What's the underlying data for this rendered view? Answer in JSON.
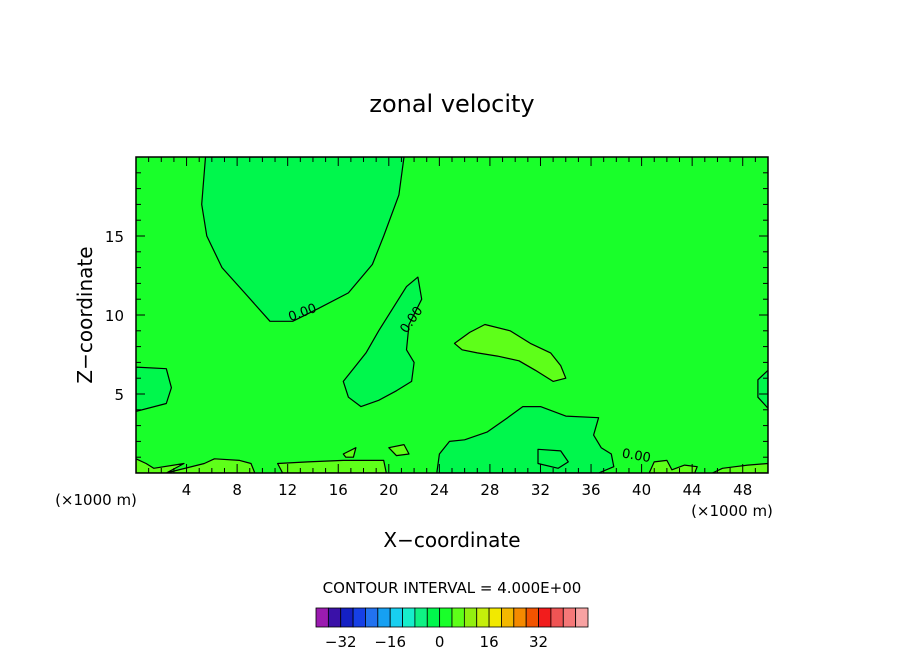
{
  "chart_data": {
    "type": "heatmap",
    "title": "zonal velocity",
    "xlabel": "X−coordinate",
    "ylabel": "Z−coordinate",
    "x_unit_left": "(×1000 m)",
    "x_unit_right": "(×1000 m)",
    "xlim": [
      0,
      50
    ],
    "ylim": [
      0,
      20
    ],
    "x_ticks": [
      4,
      8,
      12,
      16,
      20,
      24,
      28,
      32,
      36,
      40,
      44,
      48
    ],
    "y_ticks": [
      5,
      10,
      15
    ],
    "background_color": "#19ff2a",
    "contour_label": "0.00",
    "contour_interval_label": "CONTOUR INTERVAL = 4.000E+00",
    "regions": [
      {
        "color": "#00f74c",
        "points": [
          [
            5.5,
            20
          ],
          [
            5.2,
            17
          ],
          [
            5.6,
            15
          ],
          [
            6.8,
            13
          ],
          [
            8.6,
            11.4
          ],
          [
            10.6,
            9.6
          ],
          [
            12.4,
            9.6
          ],
          [
            14.4,
            10.4
          ],
          [
            16.8,
            11.4
          ],
          [
            18.7,
            13.2
          ],
          [
            19.6,
            15
          ],
          [
            20.8,
            17.6
          ],
          [
            21.2,
            20
          ]
        ]
      },
      {
        "color": "#00f74c",
        "points": [
          [
            16.4,
            5.8
          ],
          [
            17.2,
            6.6
          ],
          [
            18.2,
            7.6
          ],
          [
            19.2,
            9
          ],
          [
            20.3,
            10.4
          ],
          [
            21.4,
            11.8
          ],
          [
            22.3,
            12.4
          ],
          [
            22.6,
            11
          ],
          [
            21.6,
            9.4
          ],
          [
            21.4,
            7.8
          ],
          [
            22,
            7
          ],
          [
            21.8,
            5.8
          ],
          [
            20.6,
            5.2
          ],
          [
            19.2,
            4.6
          ],
          [
            17.8,
            4.2
          ],
          [
            16.8,
            4.8
          ]
        ]
      },
      {
        "color": "#00f74c",
        "points": [
          [
            23.8,
            0
          ],
          [
            24,
            1.2
          ],
          [
            24.8,
            2
          ],
          [
            26,
            2.1
          ],
          [
            27.8,
            2.6
          ],
          [
            29.4,
            3.5
          ],
          [
            30.6,
            4.2
          ],
          [
            32,
            4.2
          ],
          [
            34,
            3.6
          ],
          [
            36.6,
            3.5
          ],
          [
            36.2,
            2.4
          ],
          [
            36.8,
            1.6
          ],
          [
            37.6,
            1.2
          ],
          [
            37.8,
            0.4
          ],
          [
            36.6,
            0
          ]
        ]
      },
      {
        "color": "#00f74c",
        "points": [
          [
            0,
            6.7
          ],
          [
            2.4,
            6.6
          ],
          [
            2.8,
            5.4
          ],
          [
            2.4,
            4.4
          ],
          [
            0,
            3.9
          ]
        ]
      },
      {
        "color": "#00f74c",
        "points": [
          [
            50,
            6.5
          ],
          [
            49.2,
            5.9
          ],
          [
            49.2,
            4.8
          ],
          [
            50,
            4.1
          ]
        ]
      },
      {
        "color": "#00f74c",
        "points": [
          [
            31.8,
            1.5
          ],
          [
            33.6,
            1.4
          ],
          [
            34.2,
            0.7
          ],
          [
            33.4,
            0.3
          ],
          [
            31.8,
            0.6
          ]
        ]
      },
      {
        "color": "#5eff19",
        "points": [
          [
            25.2,
            8.2
          ],
          [
            26.4,
            8.9
          ],
          [
            27.6,
            9.4
          ],
          [
            29.6,
            9
          ],
          [
            31.2,
            8.2
          ],
          [
            32.8,
            7.6
          ],
          [
            33.6,
            6.8
          ],
          [
            34,
            6
          ],
          [
            33,
            5.8
          ],
          [
            31.6,
            6.5
          ],
          [
            30.3,
            7.1
          ],
          [
            28.6,
            7.4
          ],
          [
            27,
            7.6
          ],
          [
            25.8,
            7.8
          ]
        ]
      },
      {
        "color": "#5eff19",
        "points": [
          [
            0,
            0
          ],
          [
            0,
            0.9
          ],
          [
            0.8,
            0.6
          ],
          [
            1.4,
            0.3
          ],
          [
            3.8,
            0.6
          ],
          [
            2.4,
            0
          ],
          [
            5.4,
            0.6
          ],
          [
            6.2,
            0.9
          ],
          [
            8.2,
            0.8
          ],
          [
            9.1,
            0.6
          ],
          [
            9.4,
            0
          ]
        ]
      },
      {
        "color": "#5eff19",
        "points": [
          [
            11.6,
            0
          ],
          [
            11.2,
            0.6
          ],
          [
            13.6,
            0.7
          ],
          [
            16.4,
            0.8
          ],
          [
            19.6,
            0.8
          ],
          [
            19.8,
            0
          ]
        ]
      },
      {
        "color": "#5eff19",
        "points": [
          [
            16.4,
            1.2
          ],
          [
            17.4,
            1.6
          ],
          [
            17.2,
            1
          ],
          [
            16.6,
            1
          ]
        ]
      },
      {
        "color": "#5eff19",
        "points": [
          [
            20,
            1.6
          ],
          [
            21.2,
            1.8
          ],
          [
            21.6,
            1.2
          ],
          [
            20.6,
            1.1
          ]
        ]
      },
      {
        "color": "#5eff19",
        "points": [
          [
            40.6,
            0
          ],
          [
            41,
            0.7
          ],
          [
            42,
            0.8
          ],
          [
            42.4,
            0.2
          ],
          [
            43.4,
            0.5
          ],
          [
            44.4,
            0.4
          ],
          [
            44.2,
            0
          ]
        ]
      },
      {
        "color": "#5eff19",
        "points": [
          [
            45.6,
            0
          ],
          [
            46.4,
            0.3
          ],
          [
            47.4,
            0.4
          ],
          [
            48.4,
            0.5
          ],
          [
            50,
            0.6
          ],
          [
            50,
            0
          ]
        ]
      }
    ],
    "colorbar": {
      "colors": [
        "#9b1bb0",
        "#3a11a8",
        "#1420c4",
        "#1640e6",
        "#2272f0",
        "#16a0f2",
        "#18cff0",
        "#17eecb",
        "#0ff284",
        "#00f74c",
        "#19ff2a",
        "#5eff19",
        "#92ef10",
        "#c5ef0b",
        "#f2e900",
        "#f4b800",
        "#f58a00",
        "#f25400",
        "#f21c1c",
        "#f05454",
        "#f57878",
        "#f7a2a2"
      ],
      "tick_labels": [
        "−32",
        "−16",
        "0",
        "16",
        "32"
      ],
      "tick_values": [
        -32,
        -16,
        0,
        16,
        32
      ],
      "vmin": -40,
      "vmax": 48
    }
  }
}
